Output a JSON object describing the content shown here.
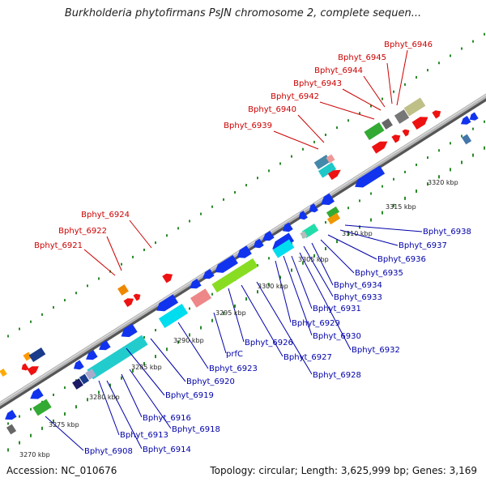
{
  "title": "Burkholderia phytofirmans PsJN chromosome 2, complete sequen...",
  "footer": {
    "accession": "Accession: NC_010676",
    "info": "Topology: circular; Length: 3,625,999 bp; Genes: 3,169"
  },
  "colors": {
    "label_upper": "#cc0000",
    "label_lower": "#0000aa",
    "backbone": "#888888",
    "tick": "#2a8a2a"
  },
  "kbp_labels": [
    "3270 kbp",
    "3275 kbp",
    "3280 kbp",
    "3285 kbp",
    "3290 kbp",
    "3295 kbp",
    "3300 kbp",
    "3305 kbp",
    "3310 kbp",
    "3315 kbp",
    "3320 kbp"
  ],
  "labels_upper": [
    "Bphyt_6946",
    "Bphyt_6945",
    "Bphyt_6944",
    "Bphyt_6943",
    "Bphyt_6942",
    "Bphyt_6940",
    "Bphyt_6939",
    "Bphyt_6924",
    "Bphyt_6922",
    "Bphyt_6921"
  ],
  "labels_lower": [
    "Bphyt_6938",
    "Bphyt_6937",
    "Bphyt_6936",
    "Bphyt_6935",
    "Bphyt_6934",
    "Bphyt_6933",
    "Bphyt_6931",
    "Bphyt_6929",
    "Bphyt_6930",
    "Bphyt_6932",
    "Bphyt_6928",
    "Bphyt_6927",
    "Bphyt_6926",
    "prfC",
    "Bphyt_6923",
    "Bphyt_6920",
    "Bphyt_6919",
    "Bphyt_6916",
    "Bphyt_6918",
    "Bphyt_6913",
    "Bphyt_6914",
    "Bphyt_6908"
  ]
}
